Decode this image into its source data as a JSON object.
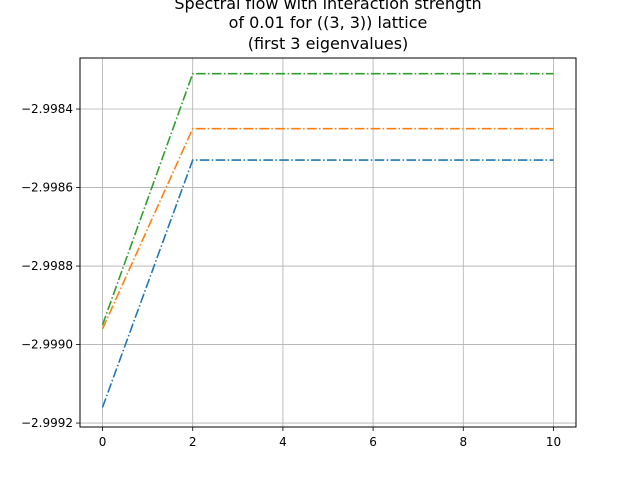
{
  "chart_data": {
    "type": "line",
    "title_lines": [
      "Spectral flow with interaction strength",
      "of 0.01 for ((3, 3)) lattice",
      "(first 3 eigenvalues)"
    ],
    "xlabel": "",
    "ylabel": "",
    "x": [
      0,
      2,
      4,
      6,
      8,
      10
    ],
    "xlim": [
      -0.5,
      10.5
    ],
    "ylim": [
      -2.99921,
      -2.99827
    ],
    "xticks": [
      0,
      2,
      4,
      6,
      8,
      10
    ],
    "xtick_labels": [
      "0",
      "2",
      "4",
      "6",
      "8",
      "10"
    ],
    "yticks": [
      -2.9992,
      -2.999,
      -2.9988,
      -2.9986,
      -2.9984
    ],
    "ytick_labels": [
      "−2.9992",
      "−2.9990",
      "−2.9988",
      "−2.9986",
      "−2.9984"
    ],
    "grid": true,
    "line_style": "dash-dot",
    "series": [
      {
        "values": [
          -2.99916,
          -2.99853,
          -2.99853,
          -2.99853,
          -2.99853,
          -2.99853
        ],
        "color": "#1f77b4"
      },
      {
        "values": [
          -2.99896,
          -2.99845,
          -2.99845,
          -2.99845,
          -2.99845,
          -2.99845
        ],
        "color": "#ff7f0e"
      },
      {
        "values": [
          -2.99895,
          -2.99831,
          -2.99831,
          -2.99831,
          -2.99831,
          -2.99831
        ],
        "color": "#2ca02c"
      }
    ]
  }
}
